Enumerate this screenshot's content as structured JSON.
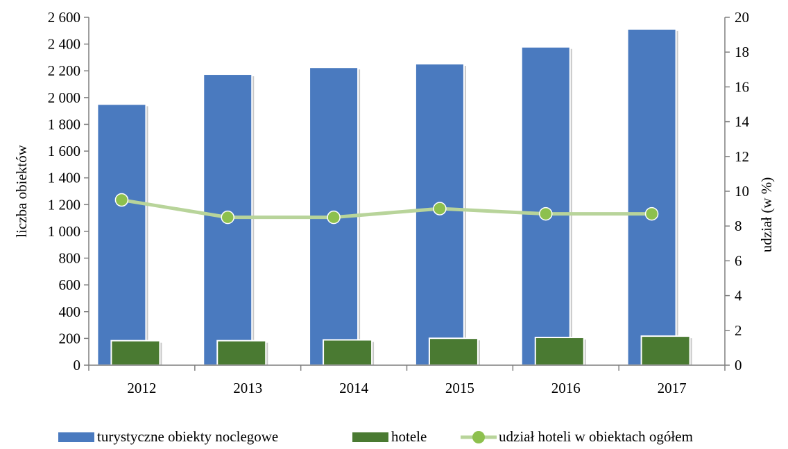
{
  "chart_data": {
    "type": "bar",
    "categories": [
      "2012",
      "2013",
      "2014",
      "2015",
      "2016",
      "2017"
    ],
    "series": [
      {
        "name": "turystyczne obiekty noclegowe",
        "kind": "bar",
        "axis": "left",
        "color": "#4a7abf",
        "values": [
          1951,
          2175,
          2226,
          2253,
          2379,
          2513
        ]
      },
      {
        "name": "hotele",
        "kind": "bar",
        "axis": "left",
        "color": "#4a7a32",
        "values": [
          183,
          183,
          189,
          201,
          207,
          217
        ]
      },
      {
        "name": "udział hoteli w obiektach ogółem",
        "kind": "line",
        "axis": "right",
        "color": "#b8d49a",
        "marker_color": "#8dc04e",
        "values": [
          9.5,
          8.5,
          8.5,
          9.0,
          8.7,
          8.7
        ]
      }
    ],
    "ylabel": "liczba obiektów",
    "y2label": "udział (w %)",
    "ylim": [
      0,
      2600
    ],
    "y2lim": [
      0,
      20
    ],
    "yticks": [
      "0",
      "200",
      "400",
      "600",
      "800",
      "1 000",
      "1 200",
      "1 400",
      "1 600",
      "1 800",
      "2 000",
      "2 200",
      "2 400",
      "2 600"
    ],
    "y2ticks": [
      "0",
      "2",
      "4",
      "6",
      "8",
      "10",
      "12",
      "14",
      "16",
      "18",
      "20"
    ],
    "grid": false,
    "legend_position": "bottom"
  }
}
